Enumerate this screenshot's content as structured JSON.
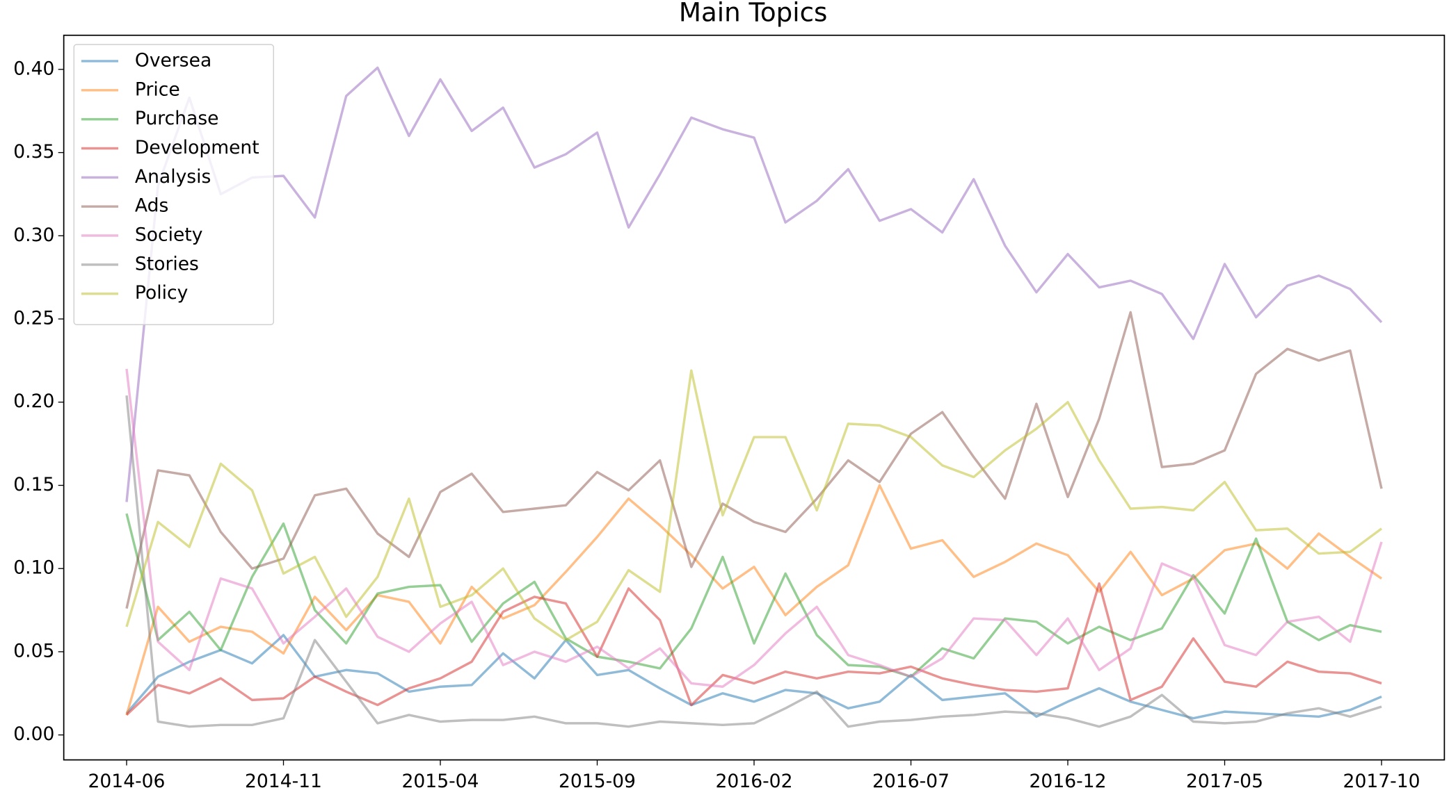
{
  "chart_data": {
    "type": "line",
    "title": "Main Topics",
    "x": [
      "2014-06",
      "2014-07",
      "2014-08",
      "2014-09",
      "2014-10",
      "2014-11",
      "2014-12",
      "2015-01",
      "2015-02",
      "2015-03",
      "2015-04",
      "2015-05",
      "2015-06",
      "2015-07",
      "2015-08",
      "2015-09",
      "2015-10",
      "2015-11",
      "2015-12",
      "2016-01",
      "2016-02",
      "2016-03",
      "2016-04",
      "2016-05",
      "2016-06",
      "2016-07",
      "2016-08",
      "2016-09",
      "2016-10",
      "2016-11",
      "2016-12",
      "2017-01",
      "2017-02",
      "2017-03",
      "2017-04",
      "2017-05",
      "2017-06",
      "2017-07",
      "2017-08",
      "2017-09",
      "2017-10"
    ],
    "xticks": [
      "2014-06",
      "2014-11",
      "2015-04",
      "2015-09",
      "2016-02",
      "2016-07",
      "2016-12",
      "2017-05",
      "2017-10"
    ],
    "ylim": [
      -0.015,
      0.4205
    ],
    "yticks": [
      {
        "value": 0,
        "label": "0.00"
      },
      {
        "value": 0.05,
        "label": "0.05"
      },
      {
        "value": 0.1,
        "label": "0.10"
      },
      {
        "value": 0.15,
        "label": "0.15"
      },
      {
        "value": 0.2,
        "label": "0.20"
      },
      {
        "value": 0.25,
        "label": "0.25"
      },
      {
        "value": 0.3,
        "label": "0.30"
      },
      {
        "value": 0.35,
        "label": "0.35"
      },
      {
        "value": 0.4,
        "label": "0.40"
      }
    ],
    "grid": false,
    "legend": "upper left",
    "alpha": 0.5,
    "series": [
      {
        "name": "Oversea",
        "color": "#1f77b4",
        "values": [
          0.013,
          0.035,
          0.044,
          0.051,
          0.043,
          0.06,
          0.035,
          0.039,
          0.037,
          0.026,
          0.029,
          0.03,
          0.049,
          0.034,
          0.057,
          0.036,
          0.039,
          0.028,
          0.018,
          0.025,
          0.02,
          0.027,
          0.025,
          0.016,
          0.02,
          0.036,
          0.021,
          0.023,
          0.025,
          0.011,
          0.02,
          0.028,
          0.02,
          0.015,
          0.01,
          0.014,
          0.013,
          0.012,
          0.011,
          0.015,
          0.023
        ]
      },
      {
        "name": "Price",
        "color": "#ff7f0e",
        "values": [
          0.012,
          0.077,
          0.056,
          0.065,
          0.062,
          0.049,
          0.083,
          0.063,
          0.084,
          0.08,
          0.055,
          0.089,
          0.07,
          0.078,
          0.098,
          0.119,
          0.142,
          0.126,
          0.108,
          0.088,
          0.101,
          0.072,
          0.089,
          0.102,
          0.15,
          0.112,
          0.117,
          0.095,
          0.104,
          0.115,
          0.108,
          0.086,
          0.11,
          0.084,
          0.094,
          0.111,
          0.115,
          0.1,
          0.121,
          0.107,
          0.094
        ]
      },
      {
        "name": "Purchase",
        "color": "#2ca02c",
        "values": [
          0.133,
          0.057,
          0.074,
          0.051,
          0.095,
          0.127,
          0.075,
          0.055,
          0.085,
          0.089,
          0.09,
          0.056,
          0.079,
          0.092,
          0.058,
          0.047,
          0.044,
          0.04,
          0.064,
          0.107,
          0.055,
          0.097,
          0.06,
          0.042,
          0.041,
          0.035,
          0.052,
          0.046,
          0.07,
          0.068,
          0.055,
          0.065,
          0.057,
          0.064,
          0.096,
          0.073,
          0.118,
          0.068,
          0.057,
          0.066,
          0.062
        ]
      },
      {
        "name": "Development",
        "color": "#d62728",
        "values": [
          0.012,
          0.03,
          0.025,
          0.034,
          0.021,
          0.022,
          0.035,
          0.026,
          0.018,
          0.028,
          0.034,
          0.044,
          0.074,
          0.083,
          0.079,
          0.047,
          0.088,
          0.069,
          0.018,
          0.036,
          0.031,
          0.038,
          0.034,
          0.038,
          0.037,
          0.041,
          0.034,
          0.03,
          0.027,
          0.026,
          0.028,
          0.091,
          0.021,
          0.029,
          0.058,
          0.032,
          0.029,
          0.044,
          0.038,
          0.037,
          0.031
        ]
      },
      {
        "name": "Analysis",
        "color": "#9467bd",
        "values": [
          0.14,
          0.33,
          0.383,
          0.325,
          0.335,
          0.336,
          0.311,
          0.384,
          0.401,
          0.36,
          0.394,
          0.363,
          0.377,
          0.341,
          0.349,
          0.362,
          0.305,
          0.337,
          0.371,
          0.364,
          0.359,
          0.308,
          0.321,
          0.34,
          0.309,
          0.316,
          0.302,
          0.334,
          0.294,
          0.266,
          0.289,
          0.269,
          0.273,
          0.265,
          0.238,
          0.283,
          0.251,
          0.27,
          0.276,
          0.268,
          0.248
        ]
      },
      {
        "name": "Ads",
        "color": "#8c564b",
        "values": [
          0.076,
          0.159,
          0.156,
          0.122,
          0.1,
          0.106,
          0.144,
          0.148,
          0.121,
          0.107,
          0.146,
          0.157,
          0.134,
          0.136,
          0.138,
          0.158,
          0.147,
          0.165,
          0.101,
          0.139,
          0.128,
          0.122,
          0.142,
          0.165,
          0.152,
          0.181,
          0.194,
          0.167,
          0.142,
          0.199,
          0.143,
          0.19,
          0.254,
          0.161,
          0.163,
          0.171,
          0.217,
          0.232,
          0.225,
          0.231,
          0.148
        ]
      },
      {
        "name": "Society",
        "color": "#e377c2",
        "values": [
          0.22,
          0.056,
          0.039,
          0.094,
          0.088,
          0.055,
          0.071,
          0.088,
          0.059,
          0.05,
          0.067,
          0.08,
          0.042,
          0.05,
          0.044,
          0.053,
          0.04,
          0.052,
          0.031,
          0.029,
          0.042,
          0.061,
          0.077,
          0.048,
          0.042,
          0.035,
          0.046,
          0.07,
          0.069,
          0.048,
          0.07,
          0.039,
          0.052,
          0.103,
          0.095,
          0.054,
          0.048,
          0.068,
          0.071,
          0.056,
          0.116
        ]
      },
      {
        "name": "Stories",
        "color": "#7f7f7f",
        "values": [
          0.204,
          0.008,
          0.005,
          0.006,
          0.006,
          0.01,
          0.057,
          0.032,
          0.007,
          0.012,
          0.008,
          0.009,
          0.009,
          0.011,
          0.007,
          0.007,
          0.005,
          0.008,
          0.007,
          0.006,
          0.007,
          0.016,
          0.026,
          0.005,
          0.008,
          0.009,
          0.011,
          0.012,
          0.014,
          0.013,
          0.01,
          0.005,
          0.011,
          0.024,
          0.008,
          0.007,
          0.008,
          0.013,
          0.016,
          0.011,
          0.017
        ]
      },
      {
        "name": "Policy",
        "color": "#bcbd22",
        "values": [
          0.065,
          0.128,
          0.113,
          0.163,
          0.147,
          0.097,
          0.107,
          0.071,
          0.095,
          0.142,
          0.077,
          0.084,
          0.1,
          0.07,
          0.057,
          0.068,
          0.099,
          0.086,
          0.219,
          0.132,
          0.179,
          0.179,
          0.135,
          0.187,
          0.186,
          0.179,
          0.162,
          0.155,
          0.171,
          0.184,
          0.2,
          0.165,
          0.136,
          0.137,
          0.135,
          0.152,
          0.123,
          0.124,
          0.109,
          0.11,
          0.124
        ]
      }
    ]
  }
}
